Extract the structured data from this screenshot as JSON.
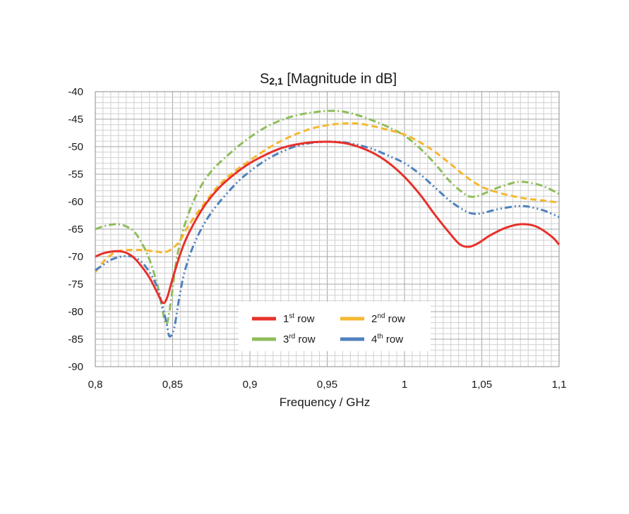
{
  "chart_data": {
    "type": "line",
    "title": {
      "prefix": "S",
      "subscript": "2,1",
      "suffix": " [Magnitude in dB]"
    },
    "xlabel": "Frequency / GHz",
    "ylabel": "",
    "xlim": [
      0.8,
      1.1
    ],
    "ylim": [
      -90,
      -40
    ],
    "x_ticks": [
      0.8,
      0.85,
      0.9,
      0.95,
      1.0,
      1.05,
      1.1
    ],
    "x_tick_labels": [
      "0,8",
      "0,85",
      "0,9",
      "0,95",
      "1",
      "1,05",
      "1,1"
    ],
    "y_ticks": [
      -40,
      -45,
      -50,
      -55,
      -60,
      -65,
      -70,
      -75,
      -80,
      -85,
      -90
    ],
    "y_tick_labels": [
      "-40",
      "-45",
      "-50",
      "-55",
      "-60",
      "-65",
      "-70",
      "-75",
      "-80",
      "-85",
      "-90"
    ],
    "grid": true,
    "legend_position": "bottom-center",
    "series": [
      {
        "name": "1st row",
        "legend": {
          "base": "1",
          "sup": "st",
          "rest": " row"
        },
        "color": "#e8302a",
        "style": "solid",
        "points": [
          [
            0.8,
            -70
          ],
          [
            0.805,
            -69.4
          ],
          [
            0.81,
            -69.1
          ],
          [
            0.815,
            -69.0
          ],
          [
            0.82,
            -69.3
          ],
          [
            0.825,
            -70.2
          ],
          [
            0.83,
            -71.8
          ],
          [
            0.835,
            -73.8
          ],
          [
            0.84,
            -76.5
          ],
          [
            0.843,
            -78.2
          ],
          [
            0.845,
            -78.3
          ],
          [
            0.847,
            -77
          ],
          [
            0.85,
            -74
          ],
          [
            0.855,
            -69.5
          ],
          [
            0.86,
            -66
          ],
          [
            0.87,
            -61
          ],
          [
            0.88,
            -57.5
          ],
          [
            0.89,
            -55
          ],
          [
            0.9,
            -53
          ],
          [
            0.91,
            -51.5
          ],
          [
            0.92,
            -50.3
          ],
          [
            0.93,
            -49.6
          ],
          [
            0.94,
            -49.2
          ],
          [
            0.95,
            -49.1
          ],
          [
            0.96,
            -49.3
          ],
          [
            0.97,
            -50
          ],
          [
            0.98,
            -51.2
          ],
          [
            0.99,
            -53
          ],
          [
            1.0,
            -55.5
          ],
          [
            1.01,
            -58.7
          ],
          [
            1.02,
            -62.5
          ],
          [
            1.03,
            -66
          ],
          [
            1.036,
            -67.8
          ],
          [
            1.042,
            -68.2
          ],
          [
            1.048,
            -67.5
          ],
          [
            1.055,
            -66.2
          ],
          [
            1.065,
            -64.8
          ],
          [
            1.075,
            -64.1
          ],
          [
            1.085,
            -64.5
          ],
          [
            1.095,
            -66.3
          ],
          [
            1.1,
            -67.8
          ]
        ]
      },
      {
        "name": "2nd row",
        "legend": {
          "base": "2",
          "sup": "nd",
          "rest": " row"
        },
        "color": "#f6b72e",
        "style": "dashed",
        "points": [
          [
            0.8,
            -72.8
          ],
          [
            0.805,
            -71
          ],
          [
            0.81,
            -69.7
          ],
          [
            0.815,
            -69.0
          ],
          [
            0.82,
            -68.8
          ],
          [
            0.83,
            -68.8
          ],
          [
            0.84,
            -69.1
          ],
          [
            0.845,
            -69.2
          ],
          [
            0.85,
            -68.5
          ],
          [
            0.855,
            -67
          ],
          [
            0.86,
            -64.5
          ],
          [
            0.87,
            -60.5
          ],
          [
            0.88,
            -57
          ],
          [
            0.89,
            -54.5
          ],
          [
            0.9,
            -52.5
          ],
          [
            0.91,
            -50.6
          ],
          [
            0.92,
            -49
          ],
          [
            0.93,
            -47.7
          ],
          [
            0.94,
            -46.7
          ],
          [
            0.95,
            -46.1
          ],
          [
            0.96,
            -45.8
          ],
          [
            0.97,
            -45.8
          ],
          [
            0.98,
            -46.3
          ],
          [
            0.99,
            -47
          ],
          [
            1.0,
            -47.8
          ],
          [
            1.01,
            -49.2
          ],
          [
            1.02,
            -51
          ],
          [
            1.03,
            -53.2
          ],
          [
            1.04,
            -55.5
          ],
          [
            1.05,
            -57.3
          ],
          [
            1.06,
            -58.3
          ],
          [
            1.07,
            -59
          ],
          [
            1.08,
            -59.5
          ],
          [
            1.09,
            -59.8
          ],
          [
            1.1,
            -60.2
          ]
        ]
      },
      {
        "name": "3rd row",
        "legend": {
          "base": "3",
          "sup": "rd",
          "rest": " row"
        },
        "color": "#8fbd5a",
        "style": "dashdot",
        "points": [
          [
            0.8,
            -65
          ],
          [
            0.805,
            -64.5
          ],
          [
            0.81,
            -64.2
          ],
          [
            0.815,
            -64.1
          ],
          [
            0.82,
            -64.5
          ],
          [
            0.825,
            -65.4
          ],
          [
            0.83,
            -67.5
          ],
          [
            0.835,
            -70.5
          ],
          [
            0.84,
            -75
          ],
          [
            0.843,
            -79
          ],
          [
            0.846,
            -82.3
          ],
          [
            0.849,
            -78
          ],
          [
            0.852,
            -71.5
          ],
          [
            0.857,
            -65
          ],
          [
            0.865,
            -59
          ],
          [
            0.875,
            -54.5
          ],
          [
            0.89,
            -50.5
          ],
          [
            0.9,
            -48.3
          ],
          [
            0.91,
            -46.5
          ],
          [
            0.92,
            -45.2
          ],
          [
            0.93,
            -44.3
          ],
          [
            0.94,
            -43.8
          ],
          [
            0.95,
            -43.5
          ],
          [
            0.96,
            -43.6
          ],
          [
            0.97,
            -44.3
          ],
          [
            0.98,
            -45.3
          ],
          [
            0.99,
            -46.5
          ],
          [
            1.0,
            -48
          ],
          [
            1.01,
            -50.3
          ],
          [
            1.02,
            -53.2
          ],
          [
            1.03,
            -56.5
          ],
          [
            1.04,
            -58.8
          ],
          [
            1.045,
            -59.1
          ],
          [
            1.05,
            -58.7
          ],
          [
            1.06,
            -57.5
          ],
          [
            1.07,
            -56.6
          ],
          [
            1.075,
            -56.4
          ],
          [
            1.08,
            -56.5
          ],
          [
            1.09,
            -57.2
          ],
          [
            1.1,
            -58.6
          ]
        ]
      },
      {
        "name": "4th row",
        "legend": {
          "base": "4",
          "sup": "th",
          "rest": " row"
        },
        "color": "#4f81bd",
        "style": "dashdotdot",
        "points": [
          [
            0.8,
            -72.5
          ],
          [
            0.805,
            -71.5
          ],
          [
            0.81,
            -70.6
          ],
          [
            0.815,
            -70.1
          ],
          [
            0.82,
            -69.9
          ],
          [
            0.825,
            -70.1
          ],
          [
            0.83,
            -71
          ],
          [
            0.835,
            -72.8
          ],
          [
            0.84,
            -75.5
          ],
          [
            0.843,
            -78.5
          ],
          [
            0.846,
            -82
          ],
          [
            0.848,
            -84.5
          ],
          [
            0.851,
            -83
          ],
          [
            0.854,
            -78
          ],
          [
            0.858,
            -72.5
          ],
          [
            0.865,
            -67
          ],
          [
            0.875,
            -62
          ],
          [
            0.89,
            -57
          ],
          [
            0.9,
            -54.5
          ],
          [
            0.91,
            -52.5
          ],
          [
            0.92,
            -51
          ],
          [
            0.93,
            -49.9
          ],
          [
            0.94,
            -49.3
          ],
          [
            0.95,
            -49.1
          ],
          [
            0.96,
            -49.2
          ],
          [
            0.97,
            -49.7
          ],
          [
            0.98,
            -50.5
          ],
          [
            0.99,
            -51.7
          ],
          [
            1.0,
            -53
          ],
          [
            1.01,
            -55
          ],
          [
            1.02,
            -57.5
          ],
          [
            1.03,
            -60
          ],
          [
            1.04,
            -61.8
          ],
          [
            1.045,
            -62.2
          ],
          [
            1.05,
            -62.1
          ],
          [
            1.06,
            -61.4
          ],
          [
            1.07,
            -60.9
          ],
          [
            1.075,
            -60.8
          ],
          [
            1.08,
            -60.9
          ],
          [
            1.09,
            -61.6
          ],
          [
            1.1,
            -62.8
          ]
        ]
      }
    ]
  }
}
